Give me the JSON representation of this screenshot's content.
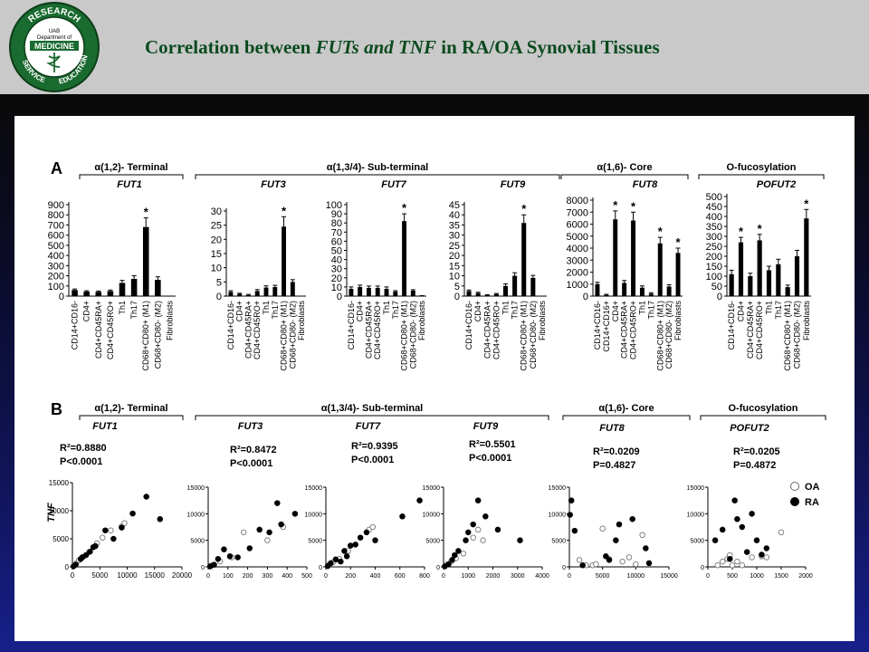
{
  "header": {
    "logo_text": [
      "UAB",
      "Department of",
      "MEDICINE",
      "RESEARCH",
      "EDUCATION",
      "SERVICE"
    ],
    "title_parts": [
      "Correlation between ",
      "FUTs and TNF",
      " in RA/OA Synovial Tissues"
    ],
    "colors": {
      "header_bg": "#c9c9c9",
      "title": "#0a4a1e"
    }
  },
  "panels": {
    "A": {
      "label": "A",
      "groups": [
        {
          "label": "α(1,2)- Terminal"
        },
        {
          "label": "α(1,3/4)- Sub-terminal"
        },
        {
          "label": "α(1,6)- Core"
        },
        {
          "label": "O-fucosylation"
        }
      ]
    },
    "B": {
      "label": "B",
      "groups": [
        {
          "label": "α(1,2)- Terminal"
        },
        {
          "label": "α(1,3/4)- Sub-terminal"
        },
        {
          "label": "α(1,6)- Core"
        },
        {
          "label": "O-fucosylation"
        }
      ],
      "legend": {
        "open": "OA",
        "filled": "RA"
      },
      "y_label": "TNF"
    }
  },
  "chart_data": [
    {
      "type": "bar",
      "gene": "FUT1",
      "categories": [
        "CD14+CD16-",
        "CD4+",
        "CD4+CD45RA+",
        "CD4+CD45RO+",
        "Th1",
        "Th17",
        "CD68+CD80+ (M1)",
        "CD68+CD80- (M2)",
        "Fibroblasts"
      ],
      "values": [
        60,
        45,
        42,
        50,
        130,
        170,
        680,
        160,
        0
      ],
      "errors": [
        10,
        8,
        8,
        10,
        25,
        30,
        90,
        30,
        0
      ],
      "ylim": [
        0,
        900
      ],
      "ticks": [
        0,
        100,
        200,
        300,
        400,
        500,
        600,
        700,
        800,
        900
      ],
      "significant_index": 6,
      "marker": "*"
    },
    {
      "type": "bar",
      "gene": "FUT3",
      "categories": [
        "CD14+CD16-",
        "CD4+",
        "CD4+CD45RA+",
        "CD4+CD45RO+",
        "Th1",
        "Th17",
        "CD68+CD80+ (M1)",
        "CD68+CD80- (M2)",
        "Fibroblasts"
      ],
      "values": [
        1.5,
        0.8,
        0.4,
        1.8,
        3,
        3.2,
        24.5,
        5,
        0
      ],
      "errors": [
        0.4,
        0.2,
        0.2,
        0.5,
        0.6,
        0.6,
        3.5,
        0.8,
        0
      ],
      "ylim": [
        0,
        30
      ],
      "ticks": [
        0,
        5,
        10,
        15,
        20,
        25,
        30
      ],
      "significant_index": 6,
      "marker": "*"
    },
    {
      "type": "bar",
      "gene": "FUT7",
      "categories": [
        "CD14+CD16-",
        "CD4+",
        "CD4+CD45RA+",
        "CD4+CD45RO+",
        "Th1",
        "Th17",
        "CD68+CD80+ (M1)",
        "CD68+CD80- (M2)",
        "Fibroblasts"
      ],
      "values": [
        8,
        10,
        9,
        9,
        8,
        5,
        82,
        6,
        1
      ],
      "errors": [
        2,
        2,
        2,
        2,
        2,
        1,
        8,
        1,
        0
      ],
      "ylim": [
        0,
        100
      ],
      "ticks": [
        0,
        10,
        20,
        30,
        40,
        50,
        60,
        70,
        80,
        90,
        100
      ],
      "significant_index": 6,
      "marker": "*"
    },
    {
      "type": "bar",
      "gene": "FUT9",
      "categories": [
        "CD14+CD16-",
        "CD4+",
        "CD4+CD45RA+",
        "CD4+CD45RO+",
        "Th1",
        "Th17",
        "CD68+CD80+ (M1)",
        "CD68+CD80- (M2)",
        "Fibroblasts"
      ],
      "values": [
        2.5,
        1.5,
        0.5,
        1,
        5,
        10,
        36,
        9,
        0
      ],
      "errors": [
        0.5,
        0.4,
        0.2,
        0.3,
        1,
        1.5,
        4,
        1.2,
        0
      ],
      "ylim": [
        0,
        45
      ],
      "ticks": [
        0,
        5,
        10,
        15,
        20,
        25,
        30,
        35,
        40,
        45
      ],
      "significant_index": 6,
      "marker": "*"
    },
    {
      "type": "bar",
      "gene": "FUT8",
      "categories": [
        "CD14+CD16-",
        "CD14+CD16+",
        "CD4+",
        "CD4+CD45RA+",
        "CD4+CD45RO+",
        "Th1",
        "Th17",
        "CD68+CD80+ (M1)",
        "CD68+CD80- (M2)",
        "Fibroblasts"
      ],
      "values": [
        1000,
        100,
        6400,
        1100,
        6300,
        700,
        200,
        4400,
        800,
        3600
      ],
      "errors": [
        150,
        50,
        700,
        200,
        700,
        150,
        80,
        500,
        150,
        400
      ],
      "ylim": [
        0,
        8000
      ],
      "ticks": [
        0,
        1000,
        2000,
        3000,
        4000,
        5000,
        6000,
        7000,
        8000
      ],
      "significant_indices": [
        2,
        4,
        7,
        9
      ],
      "marker": "*"
    },
    {
      "type": "bar",
      "gene": "POFUT2",
      "categories": [
        "CD14+CD16-",
        "CD4+",
        "CD4+CD45RA+",
        "CD4+CD45RO+",
        "Th1",
        "Th17",
        "CD68+CD80+ (M1)",
        "CD68+CD80- (M2)",
        "Fibroblasts"
      ],
      "values": [
        110,
        270,
        100,
        280,
        130,
        160,
        45,
        200,
        390
      ],
      "errors": [
        20,
        25,
        15,
        30,
        20,
        25,
        10,
        30,
        45
      ],
      "ylim": [
        0,
        500
      ],
      "ticks": [
        0,
        50,
        100,
        150,
        200,
        250,
        300,
        350,
        400,
        450,
        500
      ],
      "significant_indices": [
        1,
        3,
        8
      ],
      "marker": "*"
    },
    {
      "type": "scatter",
      "gene": "FUT1",
      "stat1": "R²=0.8880",
      "stat2": "P<0.0001",
      "xlim": [
        0,
        20000
      ],
      "xticks": [
        0,
        5000,
        10000,
        15000,
        20000
      ],
      "ylim": [
        0,
        15000
      ],
      "yticks": [
        0,
        5000,
        10000,
        15000
      ],
      "series": [
        {
          "name": "OA",
          "points": [
            [
              300,
              200
            ],
            [
              700,
              600
            ],
            [
              1200,
              1200
            ],
            [
              2000,
              1800
            ],
            [
              3000,
              2600
            ],
            [
              4500,
              4200
            ],
            [
              5500,
              5200
            ],
            [
              7000,
              6500
            ],
            [
              9000,
              7200
            ],
            [
              9500,
              7800
            ]
          ]
        },
        {
          "name": "RA",
          "points": [
            [
              200,
              100
            ],
            [
              600,
              400
            ],
            [
              1500,
              1400
            ],
            [
              1800,
              1700
            ],
            [
              2500,
              2100
            ],
            [
              3200,
              2700
            ],
            [
              3800,
              3500
            ],
            [
              4200,
              3700
            ],
            [
              6000,
              6500
            ],
            [
              7500,
              5000
            ],
            [
              9000,
              7000
            ],
            [
              11000,
              9500
            ],
            [
              13500,
              12500
            ],
            [
              16000,
              8500
            ]
          ]
        }
      ]
    },
    {
      "type": "scatter",
      "gene": "FUT3",
      "stat1": "R²=0.8472",
      "stat2": "P<0.0001",
      "xlim": [
        0,
        500
      ],
      "xticks": [
        0,
        100,
        200,
        300,
        400,
        500
      ],
      "ylim": [
        0,
        15000
      ],
      "yticks": [
        0,
        5000,
        10000,
        15000
      ],
      "series": [
        {
          "name": "OA",
          "points": [
            [
              20,
              300
            ],
            [
              60,
              1000
            ],
            [
              120,
              1800
            ],
            [
              180,
              6500
            ],
            [
              300,
              5000
            ],
            [
              380,
              7500
            ]
          ]
        },
        {
          "name": "RA",
          "points": [
            [
              10,
              100
            ],
            [
              30,
              400
            ],
            [
              50,
              1500
            ],
            [
              80,
              3300
            ],
            [
              110,
              2000
            ],
            [
              150,
              1800
            ],
            [
              210,
              3500
            ],
            [
              260,
              7000
            ],
            [
              310,
              6500
            ],
            [
              350,
              12000
            ],
            [
              370,
              8000
            ],
            [
              440,
              10000
            ]
          ]
        }
      ]
    },
    {
      "type": "scatter",
      "gene": "FUT7",
      "stat1": "R²=0.9395",
      "stat2": "P<0.0001",
      "xlim": [
        0,
        800
      ],
      "xticks": [
        0,
        200,
        400,
        600,
        800
      ],
      "ylim": [
        0,
        15000
      ],
      "yticks": [
        0,
        5000,
        10000,
        15000
      ],
      "series": [
        {
          "name": "OA",
          "points": [
            [
              30,
              500
            ],
            [
              60,
              900
            ],
            [
              110,
              1500
            ],
            [
              180,
              3000
            ],
            [
              350,
              7000
            ],
            [
              380,
              7500
            ]
          ]
        },
        {
          "name": "RA",
          "points": [
            [
              15,
              150
            ],
            [
              40,
              700
            ],
            [
              80,
              1400
            ],
            [
              120,
              1000
            ],
            [
              150,
              3000
            ],
            [
              170,
              2000
            ],
            [
              200,
              4000
            ],
            [
              240,
              4200
            ],
            [
              280,
              5500
            ],
            [
              330,
              6500
            ],
            [
              400,
              5000
            ],
            [
              620,
              9500
            ],
            [
              760,
              12500
            ]
          ]
        }
      ]
    },
    {
      "type": "scatter",
      "gene": "FUT9",
      "stat1": "R²=0.5501",
      "stat2": "P<0.0001",
      "xlim": [
        0,
        4000
      ],
      "xticks": [
        0,
        1000,
        2000,
        3000,
        4000
      ],
      "ylim": [
        0,
        15000
      ],
      "yticks": [
        0,
        5000,
        10000,
        15000
      ],
      "series": [
        {
          "name": "OA",
          "points": [
            [
              100,
              400
            ],
            [
              300,
              1000
            ],
            [
              500,
              1600
            ],
            [
              800,
              2500
            ],
            [
              1200,
              5500
            ],
            [
              1400,
              7000
            ],
            [
              1600,
              5000
            ]
          ]
        },
        {
          "name": "RA",
          "points": [
            [
              50,
              100
            ],
            [
              200,
              500
            ],
            [
              350,
              1300
            ],
            [
              450,
              2200
            ],
            [
              600,
              3000
            ],
            [
              900,
              5000
            ],
            [
              1000,
              6500
            ],
            [
              1200,
              8000
            ],
            [
              1400,
              12500
            ],
            [
              1700,
              9500
            ],
            [
              2200,
              7000
            ],
            [
              3100,
              5000
            ]
          ]
        }
      ]
    },
    {
      "type": "scatter",
      "gene": "FUT8",
      "stat1": "R²=0.0209",
      "stat2": "P=0.4827",
      "xlim": [
        0,
        15000
      ],
      "xticks": [
        0,
        5000,
        10000,
        15000
      ],
      "ylim": [
        0,
        15000
      ],
      "yticks": [
        0,
        5000,
        10000,
        15000
      ],
      "series": [
        {
          "name": "OA",
          "points": [
            [
              1500,
              1300
            ],
            [
              2500,
              300
            ],
            [
              3500,
              300
            ],
            [
              4000,
              500
            ],
            [
              5000,
              7200
            ],
            [
              6000,
              1500
            ],
            [
              8000,
              1000
            ],
            [
              9000,
              1800
            ],
            [
              10000,
              500
            ],
            [
              11000,
              6000
            ]
          ]
        },
        {
          "name": "RA",
          "points": [
            [
              100,
              9800
            ],
            [
              300,
              12500
            ],
            [
              800,
              6800
            ],
            [
              2000,
              300
            ],
            [
              5500,
              2000
            ],
            [
              6000,
              1300
            ],
            [
              7000,
              5000
            ],
            [
              7500,
              8000
            ],
            [
              9500,
              9000
            ],
            [
              11500,
              3500
            ],
            [
              12000,
              700
            ]
          ]
        }
      ]
    },
    {
      "type": "scatter",
      "gene": "POFUT2",
      "stat1": "R²=0.0205",
      "stat2": "P=0.4872",
      "xlim": [
        0,
        2000
      ],
      "xticks": [
        0,
        500,
        1000,
        1500,
        2000
      ],
      "ylim": [
        0,
        15000
      ],
      "yticks": [
        0,
        5000,
        10000,
        15000
      ],
      "series": [
        {
          "name": "OA",
          "points": [
            [
              200,
              300
            ],
            [
              300,
              1000
            ],
            [
              400,
              1500
            ],
            [
              450,
              2200
            ],
            [
              500,
              300
            ],
            [
              600,
              1000
            ],
            [
              700,
              300
            ],
            [
              900,
              1800
            ],
            [
              1100,
              2000
            ],
            [
              1200,
              1800
            ],
            [
              1500,
              6500
            ]
          ]
        },
        {
          "name": "RA",
          "points": [
            [
              150,
              5000
            ],
            [
              300,
              7000
            ],
            [
              450,
              1500
            ],
            [
              550,
              12500
            ],
            [
              600,
              9000
            ],
            [
              700,
              7500
            ],
            [
              800,
              2800
            ],
            [
              900,
              10000
            ],
            [
              1000,
              5000
            ],
            [
              1100,
              2300
            ],
            [
              1200,
              3500
            ]
          ]
        }
      ]
    }
  ]
}
